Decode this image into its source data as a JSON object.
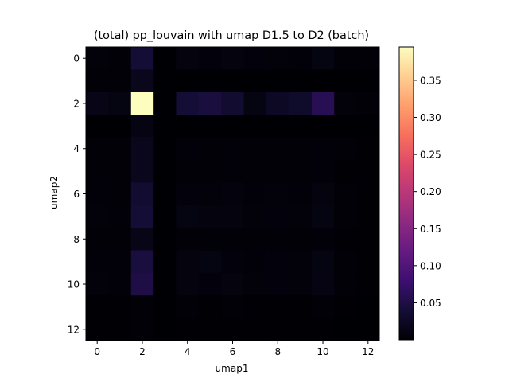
{
  "chart_data": {
    "type": "heatmap",
    "title": "(total) pp_louvain with umap D1.5 to D2 (batch)",
    "xlabel": "umap1",
    "ylabel": "umap2",
    "colormap": "magma",
    "vmin": 0.0,
    "vmax": 0.395,
    "n_rows": 13,
    "n_cols": 13,
    "x_ticks": [
      0,
      2,
      4,
      6,
      8,
      10,
      12
    ],
    "y_ticks": [
      0,
      2,
      4,
      6,
      8,
      10,
      12
    ],
    "colorbar_ticks": [
      0.05,
      0.1,
      0.15,
      0.2,
      0.25,
      0.3,
      0.35
    ],
    "colorbar_tick_labels": [
      "0.05",
      "0.10",
      "0.15",
      "0.20",
      "0.25",
      "0.30",
      "0.35"
    ],
    "values": [
      [
        0.005,
        0.003,
        0.04,
        0.0,
        0.008,
        0.006,
        0.008,
        0.006,
        0.005,
        0.004,
        0.01,
        0.003,
        0.002
      ],
      [
        0.002,
        0.002,
        0.02,
        0.0,
        0.0,
        0.0,
        0.0,
        0.0,
        0.0,
        0.0,
        0.0,
        0.0,
        0.0
      ],
      [
        0.015,
        0.01,
        0.395,
        0.0,
        0.04,
        0.045,
        0.035,
        0.01,
        0.025,
        0.03,
        0.06,
        0.005,
        0.002
      ],
      [
        0.0,
        0.0,
        0.012,
        0.0,
        0.0,
        0.0,
        0.0,
        0.0,
        0.0,
        0.0,
        0.0,
        0.0,
        0.0
      ],
      [
        0.003,
        0.002,
        0.02,
        0.0,
        0.004,
        0.003,
        0.004,
        0.002,
        0.003,
        0.002,
        0.004,
        0.002,
        0.001
      ],
      [
        0.002,
        0.002,
        0.02,
        0.0,
        0.003,
        0.003,
        0.004,
        0.002,
        0.003,
        0.002,
        0.004,
        0.001,
        0.001
      ],
      [
        0.004,
        0.003,
        0.035,
        0.0,
        0.006,
        0.005,
        0.007,
        0.004,
        0.005,
        0.004,
        0.008,
        0.002,
        0.001
      ],
      [
        0.005,
        0.004,
        0.04,
        0.0,
        0.01,
        0.008,
        0.008,
        0.005,
        0.006,
        0.005,
        0.01,
        0.002,
        0.001
      ],
      [
        0.002,
        0.002,
        0.015,
        0.0,
        0.003,
        0.002,
        0.003,
        0.002,
        0.002,
        0.002,
        0.004,
        0.001,
        0.001
      ],
      [
        0.004,
        0.004,
        0.045,
        0.0,
        0.008,
        0.01,
        0.006,
        0.004,
        0.006,
        0.005,
        0.01,
        0.002,
        0.001
      ],
      [
        0.005,
        0.004,
        0.05,
        0.0,
        0.008,
        0.006,
        0.008,
        0.005,
        0.006,
        0.005,
        0.012,
        0.002,
        0.001
      ],
      [
        0.001,
        0.001,
        0.003,
        0.0,
        0.002,
        0.001,
        0.002,
        0.001,
        0.001,
        0.001,
        0.002,
        0.001,
        0.0
      ],
      [
        0.001,
        0.001,
        0.002,
        0.0,
        0.001,
        0.001,
        0.001,
        0.001,
        0.001,
        0.001,
        0.001,
        0.0,
        0.0
      ]
    ]
  }
}
